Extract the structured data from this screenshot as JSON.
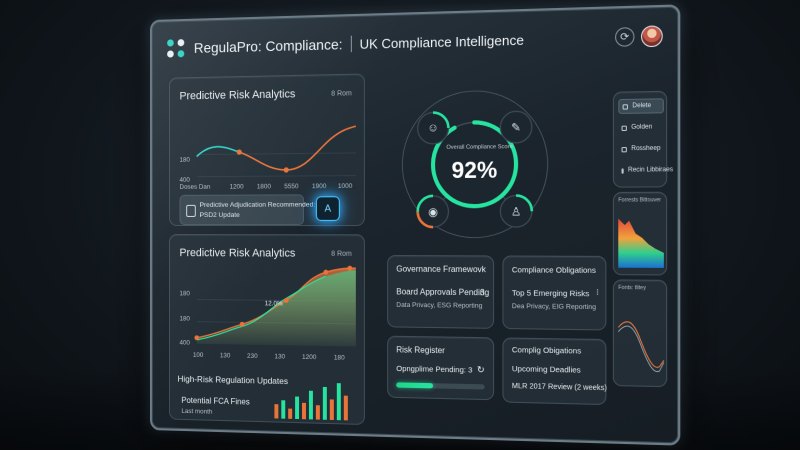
{
  "header": {
    "app_title": "RegulaPro: Compliance:",
    "subtitle": "UK Compliance Intelligence",
    "settings_glyph": "⟳"
  },
  "panel_top": {
    "title": "Predictive Risk Analytics",
    "meta": "8 Rom",
    "y_ticks": [
      "180",
      "400"
    ],
    "x_ticks": [
      "Doses Dan",
      "1200",
      "1800",
      "5550",
      "1900",
      "1000"
    ],
    "alert_line1": "Predictive Adjudication Recommended:",
    "alert_line2": "PSD2 Update",
    "ai_button": "A"
  },
  "panel_bottom": {
    "title": "Predictive Risk Analytics",
    "meta": "8 Rom",
    "peak_label": "12.0%",
    "y_ticks": [
      "180",
      "180",
      "400"
    ],
    "x_ticks": [
      "100",
      "130",
      "230",
      "130",
      "1200",
      "180"
    ],
    "section_title": "High-Risk Regulation Updates",
    "fines_title": "Potential FCA Fines",
    "fines_sub": "Last month"
  },
  "score": {
    "label": "Overall Compliance Score",
    "value": "92%"
  },
  "cards": {
    "governance": {
      "title": "Governance Framewovk",
      "line1": "Board Approvals Pending",
      "count": "3",
      "line2": "Data Privacy, ESG Reporting"
    },
    "obligations": {
      "title": "Compliance Obligations",
      "line1": "Top 5 Emerging Risks",
      "line2": "Dea Privacy, EIG Reporting",
      "more": "⁝"
    },
    "risk": {
      "title": "Risk Register",
      "line1": "Opngplime Pending: 3",
      "progress": 0.42
    },
    "compliance": {
      "title": "Complig Obigations",
      "line1": "Upcoming Deadlies",
      "line2": "MLR 2017 Review (2 weeks)"
    }
  },
  "side_menu": {
    "items": [
      "Delete",
      "Golden",
      "Rossheep",
      "Recin Libbiraes"
    ]
  },
  "side_charts": {
    "chart1_title": "Forrests Bittouver",
    "chart2_title": "Fonts: tlitey"
  },
  "colors": {
    "accent_teal": "#2ed3c5",
    "accent_green": "#27e3a0",
    "accent_orange": "#e8743a",
    "glow_blue": "#47c8ff"
  },
  "chart_data": [
    {
      "type": "line",
      "title": "Predictive Risk Analytics",
      "x": [
        "Doses Dan",
        "1200",
        "1800",
        "5550",
        "1900",
        "1000"
      ],
      "series": [
        {
          "values": [
            170,
            210,
            220,
            180,
            120,
            300
          ]
        }
      ]
    },
    {
      "type": "area",
      "title": "Predictive Risk Analytics",
      "x": [
        "100",
        "130",
        "230",
        "130",
        "1200",
        "180"
      ],
      "series": [
        {
          "values": [
            150,
            170,
            210,
            230,
            330,
            380
          ]
        },
        {
          "values": [
            140,
            165,
            220,
            290,
            340,
            390
          ]
        }
      ],
      "annotation": "12.0%"
    },
    {
      "type": "bar",
      "title": "Potential FCA Fines",
      "values": [
        3,
        5,
        2,
        6,
        4,
        7,
        3,
        8,
        5,
        9,
        6
      ]
    }
  ]
}
